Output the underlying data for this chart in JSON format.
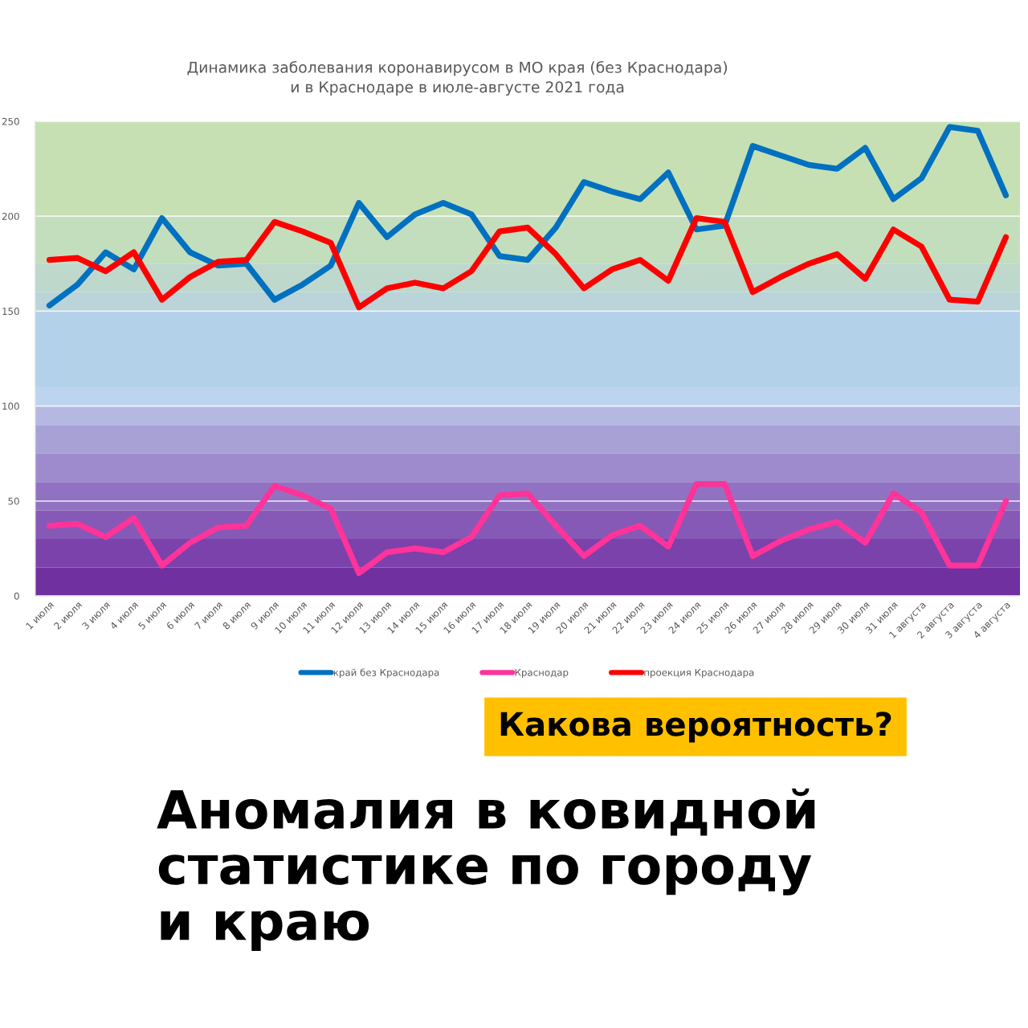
{
  "chart_data": {
    "type": "line",
    "title": "Динамика заболевания коронавирусом в МО края (без Краснодара)\nи в Краснодаре в июле-августе 2021 года",
    "categories": [
      "1 июля",
      "2 июля",
      "3 июля",
      "4 июля",
      "5 июля",
      "6 июля",
      "7 июля",
      "8 июля",
      "9 июля",
      "10 июля",
      "11 июля",
      "12 июля",
      "13 июля",
      "14 июля",
      "15 июля",
      "16 июля",
      "17 июля",
      "18 июля",
      "19 июля",
      "20 июля",
      "21 июля",
      "22 июля",
      "23 июля",
      "24 июля",
      "25 июля",
      "26 июля",
      "27 июля",
      "28 июля",
      "29 июля",
      "30 июля",
      "31 июля",
      "1 августа",
      "2 августа",
      "3 августа",
      "4 августа"
    ],
    "series": [
      {
        "name": "край без Краснодара",
        "color": "#0070c0",
        "values": [
          153,
          164,
          181,
          172,
          199,
          181,
          174,
          175,
          156,
          164,
          174,
          207,
          189,
          201,
          207,
          201,
          179,
          177,
          194,
          218,
          213,
          209,
          223,
          193,
          195,
          237,
          232,
          227,
          225,
          236,
          209,
          220,
          247,
          245,
          211
        ]
      },
      {
        "name": "Краснодар",
        "color": "#ff3399",
        "values": [
          37,
          38,
          31,
          41,
          16,
          28,
          36,
          37,
          58,
          53,
          46,
          12,
          23,
          25,
          23,
          31,
          53,
          54,
          37,
          21,
          32,
          37,
          26,
          59,
          59,
          21,
          29,
          35,
          39,
          28,
          54,
          44,
          16,
          16,
          50
        ]
      },
      {
        "name": "проекция Краснодара",
        "color": "#ff0000",
        "values": [
          177,
          178,
          171,
          181,
          156,
          168,
          176,
          177,
          197,
          192,
          186,
          152,
          162,
          165,
          162,
          171,
          192,
          194,
          180,
          162,
          172,
          177,
          166,
          199,
          197,
          160,
          168,
          175,
          180,
          167,
          193,
          184,
          156,
          155,
          189
        ]
      }
    ],
    "ylim": [
      0,
      250
    ],
    "yticks": [
      0,
      50,
      100,
      150,
      200,
      250
    ],
    "grid": "y",
    "legend": "bottom",
    "bands": [
      {
        "axis": "y",
        "from": 200,
        "to": 250,
        "color": "#c6e0b4"
      },
      {
        "axis": "y",
        "from": 175,
        "to": 200,
        "color": "#c3debd"
      },
      {
        "axis": "y",
        "from": 160,
        "to": 175,
        "color": "#bed8cc"
      },
      {
        "axis": "y",
        "from": 150,
        "to": 160,
        "color": "#bad4d9"
      },
      {
        "axis": "y",
        "from": 110,
        "to": 150,
        "color": "#b4d1ea"
      },
      {
        "axis": "y",
        "from": 100,
        "to": 110,
        "color": "#bdd4ee"
      },
      {
        "axis": "y",
        "from": 90,
        "to": 100,
        "color": "#b5b9e1"
      },
      {
        "axis": "y",
        "from": 75,
        "to": 90,
        "color": "#a8a1d6"
      },
      {
        "axis": "y",
        "from": 60,
        "to": 75,
        "color": "#9d8bcd"
      },
      {
        "axis": "y",
        "from": 45,
        "to": 60,
        "color": "#9172c2"
      },
      {
        "axis": "y",
        "from": 30,
        "to": 45,
        "color": "#8659b7"
      },
      {
        "axis": "y",
        "from": 15,
        "to": 30,
        "color": "#7a42aa"
      },
      {
        "axis": "y",
        "from": 0,
        "to": 15,
        "color": "#7030a0"
      }
    ],
    "annotations": [
      "Какова вероятность?",
      "Аномалия в ковидной\nстатистике по городу\nи краю"
    ]
  }
}
